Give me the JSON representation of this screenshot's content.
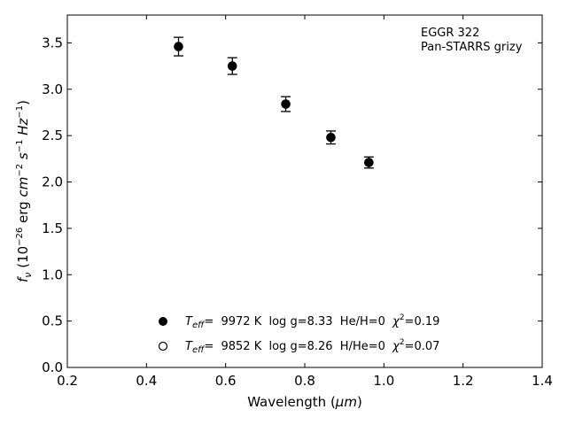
{
  "chart_data": {
    "type": "scatter",
    "xlabel_prefix": "Wavelength (",
    "xlabel_unit": "μm",
    "xlabel_suffix": ")",
    "ylabel_symbol": "f",
    "ylabel_sub": "ν",
    "ylabel_open": " (10",
    "ylabel_exp": "−26",
    "ylabel_mid": " erg ",
    "ylabel_cm": "cm",
    "ylabel_cm_exp": "−2",
    "ylabel_s": "s",
    "ylabel_s_exp": "−1",
    "ylabel_hz": "Hz",
    "ylabel_hz_exp": "−1",
    "ylabel_close": ")",
    "xlim": [
      0.2,
      1.4
    ],
    "ylim": [
      0.0,
      3.8
    ],
    "xticks": [
      "0.2",
      "0.4",
      "0.6",
      "0.8",
      "1.0",
      "1.2",
      "1.4"
    ],
    "yticks": [
      "0.0",
      "0.5",
      "1.0",
      "1.5",
      "2.0",
      "2.5",
      "3.0",
      "3.5"
    ],
    "annotation": [
      "EGGR 322",
      "Pan-STARRS grizy"
    ],
    "series": [
      {
        "marker": "filled",
        "points": [
          {
            "x": 0.481,
            "y": 3.46,
            "err": 0.1
          },
          {
            "x": 0.617,
            "y": 3.25,
            "err": 0.09
          },
          {
            "x": 0.752,
            "y": 2.84,
            "err": 0.08
          },
          {
            "x": 0.866,
            "y": 2.48,
            "err": 0.07
          },
          {
            "x": 0.962,
            "y": 2.21,
            "err": 0.06
          }
        ]
      }
    ],
    "legend": [
      {
        "marker": "filled",
        "teff_label": "T",
        "teff_sub": "eff",
        "text": "=  9972 K  log g=8.33  He/H=0  ",
        "chi": "χ",
        "chi_exp": "2",
        "chi_val": "=0.19"
      },
      {
        "marker": "open",
        "teff_label": "T",
        "teff_sub": "eff",
        "text": "=  9852 K  log g=8.26  H/He=0  ",
        "chi": "χ",
        "chi_exp": "2",
        "chi_val": "=0.07"
      }
    ],
    "legend_placement": "lower-center",
    "grid": false
  }
}
